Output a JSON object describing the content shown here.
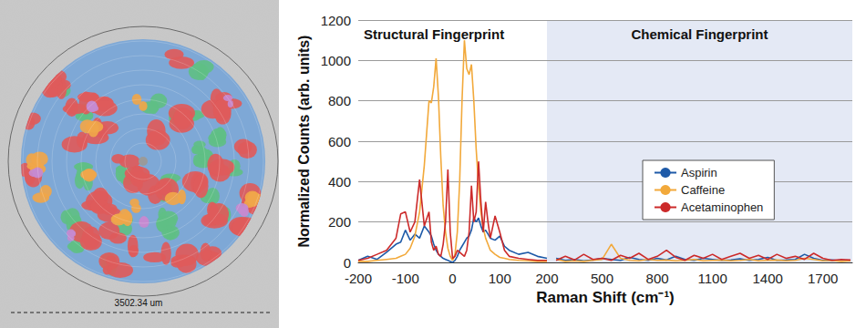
{
  "image": {
    "scale_label": "3502.34 um"
  },
  "chart_data": [
    {
      "type": "line",
      "title": "Structural Fingerprint",
      "xlabel": "Raman Shift (cm⁻¹)",
      "ylabel": "Normalized Counts (arb. units)",
      "grid": true,
      "xlim": [
        -200,
        200
      ],
      "xticks": [
        -200,
        -100,
        0,
        100,
        200
      ],
      "ylim": [
        0,
        1200
      ],
      "yticks": [
        0,
        200,
        400,
        600,
        800,
        1000,
        1200
      ],
      "x": [
        -200,
        -180,
        -160,
        -140,
        -120,
        -110,
        -100,
        -90,
        -80,
        -70,
        -60,
        -50,
        -45,
        -40,
        -35,
        -30,
        -25,
        -20,
        -15,
        -10,
        -5,
        0,
        5,
        10,
        15,
        20,
        25,
        30,
        35,
        40,
        45,
        50,
        55,
        60,
        65,
        70,
        75,
        80,
        90,
        100,
        110,
        120,
        140,
        160,
        180,
        200
      ],
      "series": [
        {
          "name": "Aspirin",
          "color": "#1e5aa8",
          "values": [
            10,
            30,
            15,
            50,
            90,
            100,
            160,
            110,
            140,
            120,
            180,
            150,
            130,
            90,
            60,
            40,
            30,
            20,
            15,
            10,
            5,
            0,
            10,
            30,
            60,
            80,
            100,
            120,
            130,
            160,
            220,
            200,
            220,
            180,
            150,
            160,
            140,
            120,
            110,
            130,
            80,
            60,
            40,
            50,
            30,
            20
          ]
        },
        {
          "name": "Caffeine",
          "color": "#f2a93b",
          "values": [
            5,
            5,
            10,
            15,
            20,
            30,
            40,
            70,
            130,
            250,
            480,
            800,
            790,
            870,
            1010,
            820,
            520,
            280,
            150,
            70,
            30,
            10,
            40,
            150,
            400,
            800,
            1100,
            960,
            930,
            980,
            800,
            560,
            380,
            250,
            170,
            120,
            90,
            60,
            40,
            25,
            20,
            15,
            10,
            8,
            5,
            5
          ]
        },
        {
          "name": "Acetaminophen",
          "color": "#cc2a2a",
          "values": [
            10,
            20,
            40,
            60,
            120,
            240,
            250,
            150,
            200,
            410,
            180,
            250,
            100,
            60,
            80,
            40,
            30,
            90,
            200,
            460,
            150,
            20,
            30,
            60,
            50,
            40,
            30,
            60,
            150,
            380,
            200,
            250,
            500,
            300,
            150,
            300,
            200,
            120,
            230,
            150,
            60,
            30,
            20,
            15,
            10,
            10
          ]
        }
      ]
    },
    {
      "type": "line",
      "title": "Chemical Fingerprint",
      "grid": true,
      "legend": "center",
      "tick_labels": "x",
      "xlim": [
        200,
        1860
      ],
      "xticks": [
        500,
        800,
        1100,
        1400,
        1700
      ],
      "ylim": [
        0,
        1200
      ],
      "yticks": [
        0,
        200,
        400,
        600,
        800,
        1000,
        1200
      ],
      "x": [
        250,
        300,
        350,
        400,
        450,
        500,
        550,
        600,
        650,
        700,
        750,
        800,
        850,
        900,
        950,
        1000,
        1050,
        1100,
        1150,
        1200,
        1250,
        1300,
        1350,
        1400,
        1450,
        1500,
        1550,
        1600,
        1650,
        1700,
        1750,
        1800,
        1850
      ],
      "series": [
        {
          "name": "Aspirin",
          "color": "#1e5aa8",
          "values": [
            20,
            10,
            15,
            8,
            12,
            20,
            15,
            10,
            25,
            15,
            10,
            20,
            12,
            30,
            15,
            10,
            20,
            15,
            10,
            12,
            18,
            10,
            15,
            25,
            10,
            12,
            15,
            40,
            20,
            10,
            12,
            8,
            10
          ]
        },
        {
          "name": "Caffeine",
          "color": "#f2a93b",
          "values": [
            15,
            5,
            8,
            5,
            10,
            15,
            90,
            20,
            10,
            8,
            15,
            10,
            12,
            8,
            10,
            15,
            8,
            10,
            12,
            8,
            10,
            15,
            8,
            10,
            12,
            8,
            10,
            20,
            15,
            8,
            10,
            5,
            8
          ]
        },
        {
          "name": "Acetaminophen",
          "color": "#cc2a2a",
          "values": [
            10,
            30,
            12,
            40,
            15,
            20,
            10,
            35,
            20,
            45,
            15,
            30,
            60,
            25,
            10,
            35,
            20,
            40,
            15,
            30,
            45,
            20,
            35,
            15,
            40,
            20,
            30,
            15,
            45,
            20,
            10,
            15,
            12
          ]
        }
      ]
    }
  ]
}
